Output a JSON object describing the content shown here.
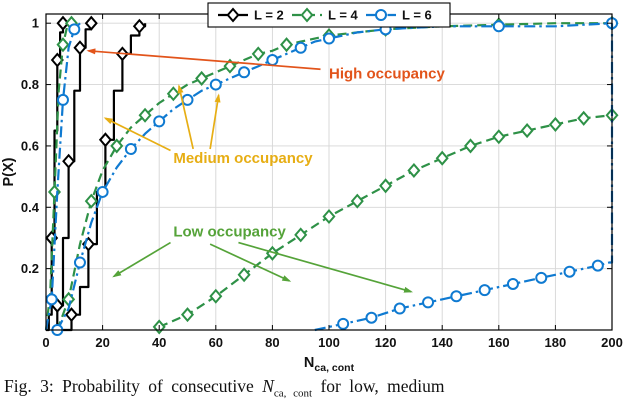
{
  "figure": {
    "caption": {
      "prefix": "Fig. 3:",
      "body": "Probability of consecutive",
      "var": "N",
      "var_sub": "ca, cont",
      "suffix": "for low, medium"
    }
  },
  "chart_data": {
    "type": "line",
    "subtype": "cdf",
    "title": "",
    "xlabel_main": "N",
    "xlabel_sub": "ca, cont",
    "ylabel": "P(X)",
    "xlim": [
      0,
      200
    ],
    "ylim": [
      0,
      1.03
    ],
    "xticks": [
      0,
      20,
      40,
      60,
      80,
      100,
      120,
      140,
      160,
      180,
      200
    ],
    "yticks": [
      0.2,
      0.4,
      0.6,
      0.8,
      1
    ],
    "grid": true,
    "grid_color": "#d6d6d6",
    "axis_color": "#000000",
    "legend": {
      "position": "top-center",
      "entries": [
        {
          "label": "L = 2",
          "color": "#000000",
          "marker": "diamond",
          "dash": "solid"
        },
        {
          "label": "L = 4",
          "color": "#2e9147",
          "marker": "diamond",
          "dash": "dashed"
        },
        {
          "label": "L = 6",
          "color": "#0f7ad1",
          "marker": "circle",
          "dash": "dashdot"
        }
      ]
    },
    "series": [
      {
        "id": "L2-high",
        "group": "L = 2",
        "occupancy": "high",
        "color": "#000000",
        "dash": "solid",
        "marker": "diamond",
        "step": true,
        "marker_every": 2,
        "marker_offset": 2,
        "marker_trim": 0,
        "x": [
          0,
          1,
          2,
          3,
          4,
          5,
          6,
          8
        ],
        "y": [
          0,
          0.05,
          0.3,
          0.65,
          0.88,
          0.97,
          1,
          1
        ]
      },
      {
        "id": "L2-medium",
        "group": "L = 2",
        "occupancy": "medium",
        "color": "#000000",
        "dash": "solid",
        "marker": "diamond",
        "step": true,
        "marker_every": 2,
        "marker_offset": 1,
        "marker_trim": 0,
        "x": [
          2,
          4,
          6,
          8,
          10,
          12,
          14,
          16,
          18
        ],
        "y": [
          0,
          0.08,
          0.3,
          0.55,
          0.78,
          0.92,
          0.98,
          1,
          1
        ]
      },
      {
        "id": "L2-low",
        "group": "L = 2",
        "occupancy": "low",
        "color": "#000000",
        "dash": "solid",
        "marker": "diamond",
        "step": true,
        "marker_every": 2,
        "marker_offset": 1,
        "marker_trim": 0,
        "x": [
          6,
          9,
          12,
          15,
          18,
          21,
          24,
          27,
          30,
          33,
          35
        ],
        "y": [
          0,
          0.05,
          0.14,
          0.28,
          0.45,
          0.62,
          0.78,
          0.9,
          0.96,
          0.99,
          1
        ]
      },
      {
        "id": "L4-high",
        "group": "L = 4",
        "occupancy": "high",
        "color": "#2e9147",
        "dash": "dashed",
        "marker": "diamond",
        "step": false,
        "marker_every": 2,
        "marker_offset": 2,
        "marker_trim": 0,
        "x": [
          0,
          1.5,
          3,
          4.5,
          6,
          7.5,
          9
        ],
        "y": [
          0,
          0.12,
          0.45,
          0.78,
          0.93,
          0.99,
          1
        ]
      },
      {
        "id": "L4-medium",
        "group": "L = 4",
        "occupancy": "medium",
        "color": "#2e9147",
        "dash": "dashed",
        "marker": "diamond",
        "step": false,
        "marker_every": 2,
        "marker_offset": 1,
        "marker_trim": 0,
        "x": [
          4,
          8,
          12,
          16,
          20,
          25,
          30,
          35,
          40,
          45,
          50,
          55,
          60,
          65,
          70,
          75,
          80,
          85,
          90,
          100,
          110,
          120,
          140,
          160,
          180,
          200
        ],
        "y": [
          0,
          0.1,
          0.28,
          0.42,
          0.52,
          0.6,
          0.66,
          0.7,
          0.74,
          0.77,
          0.8,
          0.82,
          0.84,
          0.86,
          0.88,
          0.9,
          0.91,
          0.93,
          0.94,
          0.96,
          0.97,
          0.98,
          0.99,
          0.995,
          1,
          1
        ]
      },
      {
        "id": "L4-low",
        "group": "L = 4",
        "occupancy": "low",
        "color": "#2e9147",
        "dash": "dashed",
        "marker": "diamond",
        "step": false,
        "marker_every": 1,
        "marker_offset": 0,
        "marker_trim": 0,
        "x": [
          40,
          50,
          60,
          70,
          80,
          90,
          100,
          110,
          120,
          130,
          140,
          150,
          160,
          170,
          180,
          190,
          200
        ],
        "y": [
          0.01,
          0.05,
          0.11,
          0.18,
          0.25,
          0.31,
          0.37,
          0.42,
          0.47,
          0.52,
          0.56,
          0.6,
          0.63,
          0.65,
          0.67,
          0.69,
          0.7
        ]
      },
      {
        "id": "L6-high",
        "group": "L = 6",
        "occupancy": "high",
        "color": "#0f7ad1",
        "dash": "dashdot",
        "marker": "circle",
        "step": false,
        "marker_every": 2,
        "marker_offset": 1,
        "marker_trim": 0,
        "x": [
          0,
          2,
          4,
          6,
          8,
          10,
          12
        ],
        "y": [
          0,
          0.1,
          0.45,
          0.75,
          0.92,
          0.98,
          1
        ]
      },
      {
        "id": "L6-medium",
        "group": "L = 6",
        "occupancy": "medium",
        "color": "#0f7ad1",
        "dash": "dashdot",
        "marker": "circle",
        "step": false,
        "marker_every": 2,
        "marker_offset": 0,
        "marker_trim": 0,
        "x": [
          4,
          8,
          12,
          16,
          20,
          25,
          30,
          35,
          40,
          45,
          50,
          55,
          60,
          65,
          70,
          75,
          80,
          85,
          90,
          95,
          100,
          110,
          120,
          140,
          160,
          180,
          200
        ],
        "y": [
          0,
          0.07,
          0.22,
          0.35,
          0.45,
          0.53,
          0.59,
          0.64,
          0.68,
          0.72,
          0.75,
          0.78,
          0.8,
          0.82,
          0.84,
          0.86,
          0.88,
          0.9,
          0.92,
          0.94,
          0.95,
          0.97,
          0.98,
          0.99,
          0.99,
          0.99,
          1
        ]
      },
      {
        "id": "L6-low",
        "group": "L = 6",
        "occupancy": "low",
        "color": "#0f7ad1",
        "dash": "dashdot",
        "marker": "circle",
        "step": false,
        "marker_every": 1,
        "marker_offset": 1,
        "marker_trim": 3,
        "x": [
          95,
          105,
          115,
          125,
          135,
          145,
          155,
          165,
          175,
          185,
          195,
          199,
          200,
          200
        ],
        "y": [
          0,
          0.02,
          0.04,
          0.07,
          0.09,
          0.11,
          0.13,
          0.15,
          0.17,
          0.19,
          0.21,
          0.22,
          0.22,
          1
        ]
      }
    ],
    "annotations": [
      {
        "id": "high-occupancy",
        "text": "High occupancy",
        "color": "#e2541b",
        "tx": 100,
        "ty": 0.82,
        "anchor": "start",
        "arrows": [
          {
            "x1": 97,
            "y1": 0.85,
            "x2": 15,
            "y2": 0.91
          }
        ]
      },
      {
        "id": "medium-occupancy",
        "text": "Medium occupancy",
        "color": "#e7ae14",
        "tx": 45,
        "ty": 0.545,
        "anchor": "start",
        "arrows": [
          {
            "x1": 44,
            "y1": 0.585,
            "x2": 21,
            "y2": 0.69
          },
          {
            "x1": 52,
            "y1": 0.59,
            "x2": 47,
            "y2": 0.795
          },
          {
            "x1": 58,
            "y1": 0.59,
            "x2": 61,
            "y2": 0.765
          }
        ]
      },
      {
        "id": "low-occupancy",
        "text": "Low occupancy",
        "color": "#55a339",
        "tx": 45,
        "ty": 0.305,
        "anchor": "start",
        "arrows": [
          {
            "x1": 44,
            "y1": 0.285,
            "x2": 24,
            "y2": 0.175
          },
          {
            "x1": 58,
            "y1": 0.28,
            "x2": 86,
            "y2": 0.16
          },
          {
            "x1": 68,
            "y1": 0.285,
            "x2": 129,
            "y2": 0.125
          }
        ]
      }
    ]
  }
}
